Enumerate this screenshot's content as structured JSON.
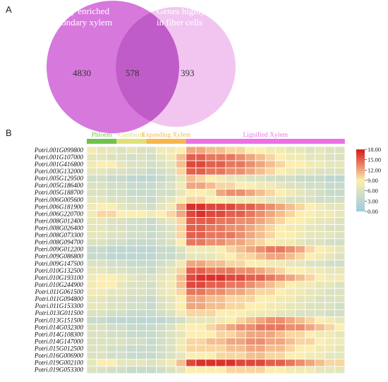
{
  "panel_a": {
    "label": "A",
    "left_title_line1": "Genes highly enriched",
    "left_title_line2": "in the secondary xylem",
    "right_title_line1": "Genes highly enriched",
    "right_title_line2": "in fiber cells",
    "left_only": "4830",
    "overlap": "578",
    "right_only": "393"
  },
  "panel_b": {
    "label": "B",
    "zones": [
      {
        "label": "Phloem",
        "columns": 3,
        "color": "#6fc24a"
      },
      {
        "label": "Cambium",
        "columns": 3,
        "color": "#e0e07a"
      },
      {
        "label": "Expanding Xylem",
        "columns": 4,
        "color": "#f5b64a"
      },
      {
        "label": "Lignified Xylem",
        "columns": 16,
        "color": "#ec6fe6"
      }
    ]
  },
  "colors": {
    "venn_left": "#d778dd",
    "venn_right": "#f1c0f0",
    "venn_overlap": "#c05cc8",
    "scale_low": "#9ecae1",
    "scale_mid": "#fbeeb0",
    "scale_high": "#d7191c"
  },
  "chart_data": {
    "type": "heatmap",
    "color_scale": {
      "min": 0,
      "max": 18,
      "ticks": [
        "18.00",
        "15.00",
        "12.00",
        "9.00",
        "6.00",
        "3.00",
        "0.00"
      ]
    },
    "rows": [
      "Potri.001G099800",
      "Potri.001G107000",
      "Potri.001G416800",
      "Potri.003G132000",
      "Potri.005G129500",
      "Potri.005G186400",
      "Potri.005G188700",
      "Potri.006G005600",
      "Potri.006G181900",
      "Potri.006G220700",
      "Potri.008G012400",
      "Potri.008G026400",
      "Potri.008G073300",
      "Potri.008G094700",
      "Potri.009G012200",
      "Potri.009G086800",
      "Potri.009G147500",
      "Potri.010G132500",
      "Potri.010G193100",
      "Potri.010G244900",
      "Potri.011G061500",
      "Potri.011G094800",
      "Potri.011G153300",
      "Potri.013G011500",
      "Potri.013G151500",
      "Potri.014G032300",
      "Potri.014G108300",
      "Potri.014G147000",
      "Potri.015G012500",
      "Potri.016G006900",
      "Potri.019G002100",
      "Potri.019G053300"
    ],
    "values": [
      [
        8,
        7,
        7,
        6,
        7,
        6,
        6,
        8,
        8,
        9,
        12,
        12,
        11,
        11,
        10,
        10,
        9,
        9,
        8,
        8,
        7,
        7,
        6,
        7,
        6,
        6
      ],
      [
        7,
        7,
        6,
        6,
        5,
        6,
        5,
        7,
        8,
        11,
        15,
        15,
        14,
        14,
        14,
        13,
        12,
        11,
        10,
        9,
        8,
        8,
        7,
        7,
        6,
        6
      ],
      [
        8,
        9,
        9,
        7,
        6,
        6,
        5,
        6,
        7,
        11,
        16,
        16,
        15,
        15,
        14,
        14,
        13,
        12,
        11,
        10,
        9,
        9,
        8,
        8,
        7,
        7
      ],
      [
        7,
        7,
        6,
        6,
        5,
        5,
        4,
        5,
        6,
        10,
        15,
        15,
        14,
        14,
        13,
        13,
        12,
        11,
        10,
        9,
        8,
        7,
        7,
        6,
        6,
        6
      ],
      [
        5,
        5,
        4,
        4,
        3,
        3,
        3,
        4,
        5,
        7,
        11,
        10,
        9,
        8,
        7,
        7,
        6,
        6,
        5,
        5,
        5,
        4,
        4,
        4,
        3,
        3
      ],
      [
        6,
        6,
        5,
        5,
        4,
        4,
        4,
        5,
        6,
        8,
        12,
        12,
        11,
        10,
        10,
        9,
        9,
        8,
        8,
        7,
        6,
        6,
        5,
        5,
        4,
        4
      ],
      [
        6,
        6,
        5,
        5,
        4,
        4,
        4,
        5,
        5,
        7,
        9,
        9,
        8,
        12,
        13,
        13,
        12,
        11,
        10,
        9,
        8,
        7,
        6,
        5,
        4,
        4
      ],
      [
        7,
        7,
        6,
        6,
        5,
        5,
        4,
        6,
        7,
        9,
        10,
        10,
        9,
        9,
        8,
        8,
        8,
        8,
        7,
        7,
        6,
        6,
        6,
        5,
        5,
        5
      ],
      [
        8,
        9,
        9,
        7,
        6,
        6,
        5,
        7,
        8,
        12,
        17,
        17,
        16,
        16,
        16,
        15,
        15,
        14,
        13,
        12,
        11,
        10,
        9,
        8,
        7,
        7
      ],
      [
        8,
        10,
        10,
        9,
        9,
        9,
        8,
        9,
        10,
        12,
        16,
        17,
        16,
        16,
        15,
        15,
        14,
        13,
        12,
        11,
        10,
        9,
        9,
        8,
        8,
        7
      ],
      [
        7,
        7,
        6,
        6,
        5,
        5,
        4,
        6,
        7,
        10,
        15,
        15,
        15,
        14,
        14,
        13,
        13,
        12,
        11,
        10,
        9,
        9,
        8,
        7,
        7,
        6
      ],
      [
        7,
        7,
        6,
        6,
        5,
        5,
        4,
        5,
        6,
        10,
        15,
        15,
        14,
        14,
        13,
        13,
        12,
        11,
        10,
        9,
        8,
        8,
        7,
        7,
        6,
        6
      ],
      [
        7,
        7,
        6,
        6,
        5,
        5,
        4,
        5,
        6,
        10,
        15,
        15,
        14,
        14,
        14,
        13,
        12,
        11,
        10,
        9,
        9,
        8,
        7,
        7,
        7,
        6
      ],
      [
        6,
        6,
        5,
        5,
        4,
        4,
        4,
        5,
        6,
        9,
        14,
        14,
        13,
        13,
        12,
        12,
        11,
        10,
        9,
        8,
        8,
        7,
        6,
        6,
        5,
        5
      ],
      [
        4,
        4,
        3,
        3,
        3,
        3,
        3,
        4,
        4,
        6,
        8,
        8,
        8,
        9,
        10,
        11,
        12,
        13,
        14,
        14,
        13,
        12,
        10,
        9,
        8,
        7
      ],
      [
        4,
        4,
        3,
        3,
        3,
        3,
        3,
        4,
        4,
        5,
        7,
        7,
        7,
        8,
        9,
        10,
        10,
        11,
        12,
        12,
        11,
        10,
        9,
        8,
        7,
        6
      ],
      [
        6,
        6,
        5,
        5,
        4,
        4,
        4,
        5,
        6,
        8,
        12,
        12,
        11,
        11,
        10,
        10,
        9,
        9,
        8,
        8,
        7,
        7,
        6,
        6,
        5,
        5
      ],
      [
        7,
        7,
        6,
        6,
        5,
        5,
        4,
        6,
        7,
        10,
        15,
        15,
        14,
        14,
        14,
        13,
        13,
        12,
        11,
        10,
        9,
        9,
        8,
        8,
        7,
        7
      ],
      [
        8,
        9,
        9,
        8,
        7,
        6,
        6,
        7,
        8,
        11,
        16,
        17,
        17,
        17,
        16,
        16,
        15,
        15,
        14,
        13,
        12,
        11,
        10,
        9,
        8,
        8
      ],
      [
        8,
        9,
        9,
        7,
        6,
        6,
        5,
        7,
        8,
        11,
        16,
        16,
        15,
        15,
        14,
        14,
        13,
        12,
        11,
        10,
        9,
        8,
        8,
        7,
        7,
        6
      ],
      [
        8,
        8,
        7,
        7,
        6,
        6,
        5,
        7,
        8,
        10,
        14,
        14,
        13,
        13,
        12,
        12,
        11,
        10,
        10,
        9,
        8,
        8,
        7,
        7,
        6,
        6
      ],
      [
        7,
        7,
        6,
        6,
        5,
        5,
        4,
        6,
        7,
        9,
        12,
        12,
        11,
        11,
        10,
        10,
        10,
        9,
        9,
        8,
        8,
        7,
        7,
        6,
        6,
        6
      ],
      [
        7,
        7,
        6,
        6,
        5,
        5,
        4,
        6,
        7,
        9,
        12,
        12,
        11,
        11,
        10,
        10,
        9,
        9,
        8,
        8,
        7,
        7,
        6,
        6,
        6,
        5
      ],
      [
        6,
        6,
        5,
        5,
        4,
        4,
        4,
        5,
        6,
        8,
        10,
        10,
        10,
        9,
        9,
        9,
        8,
        8,
        8,
        7,
        7,
        6,
        6,
        6,
        5,
        5
      ],
      [
        4,
        4,
        3,
        3,
        3,
        3,
        3,
        3,
        4,
        5,
        7,
        7,
        7,
        8,
        9,
        10,
        11,
        12,
        13,
        13,
        12,
        11,
        10,
        9,
        8,
        7
      ],
      [
        6,
        6,
        5,
        5,
        4,
        4,
        4,
        5,
        6,
        8,
        9,
        9,
        10,
        11,
        12,
        13,
        13,
        14,
        14,
        14,
        13,
        13,
        12,
        11,
        10,
        9
      ],
      [
        6,
        6,
        5,
        5,
        4,
        4,
        4,
        5,
        6,
        7,
        9,
        9,
        9,
        10,
        10,
        11,
        12,
        12,
        12,
        11,
        10,
        10,
        9,
        8,
        8,
        7
      ],
      [
        6,
        6,
        6,
        6,
        5,
        5,
        4,
        5,
        6,
        8,
        10,
        10,
        11,
        11,
        12,
        12,
        13,
        13,
        12,
        12,
        11,
        10,
        10,
        9,
        8,
        8
      ],
      [
        6,
        6,
        5,
        5,
        4,
        4,
        4,
        5,
        6,
        8,
        10,
        10,
        10,
        10,
        11,
        11,
        12,
        12,
        11,
        11,
        10,
        9,
        9,
        8,
        8,
        7
      ],
      [
        6,
        6,
        5,
        5,
        4,
        4,
        4,
        5,
        6,
        7,
        9,
        9,
        9,
        10,
        10,
        10,
        11,
        11,
        10,
        10,
        9,
        9,
        8,
        8,
        7,
        7
      ],
      [
        7,
        9,
        9,
        7,
        7,
        7,
        6,
        7,
        8,
        11,
        16,
        17,
        17,
        17,
        17,
        16,
        16,
        16,
        15,
        15,
        14,
        13,
        12,
        11,
        10,
        10
      ],
      [
        6,
        6,
        5,
        5,
        4,
        4,
        4,
        5,
        6,
        7,
        9,
        9,
        9,
        9,
        10,
        10,
        10,
        10,
        9,
        9,
        8,
        8,
        8,
        7,
        7,
        7
      ]
    ]
  }
}
